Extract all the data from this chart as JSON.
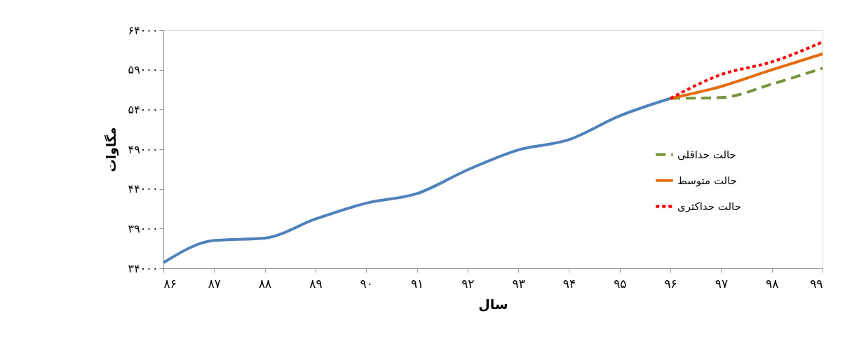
{
  "chart_data": {
    "type": "line",
    "xlabel": "سال",
    "ylabel": "مگاوات",
    "categories": [
      "۸۶",
      "۸۷",
      "۸۸",
      "۸۹",
      "۹۰",
      "۹۱",
      "۹۲",
      "۹۳",
      "۹۴",
      "۹۵",
      "۹۶",
      "۹۷",
      "۹۸",
      "۹۹"
    ],
    "series": [
      {
        "color": "#4f81bd",
        "line_style": "solid",
        "values": [
          34700,
          37500,
          37800,
          40200,
          42200,
          43400,
          46400,
          48900,
          50200,
          53200,
          55400,
          null,
          null,
          null
        ]
      },
      {
        "name": "حالت حداقلی",
        "color": "#77933c",
        "line_style": "dashed",
        "values": [
          null,
          null,
          null,
          null,
          null,
          null,
          null,
          null,
          null,
          null,
          55400,
          55500,
          57200,
          59200
        ]
      },
      {
        "name": "حالت متوسط",
        "color": "#e46c0a",
        "line_style": "solid",
        "values": [
          null,
          null,
          null,
          null,
          null,
          null,
          null,
          null,
          null,
          null,
          55400,
          56900,
          59000,
          61000
        ]
      },
      {
        "name": "حالت حداکثری",
        "color": "#ff0000",
        "line_style": "dotted",
        "values": [
          null,
          null,
          null,
          null,
          null,
          null,
          null,
          null,
          null,
          null,
          55400,
          58400,
          60000,
          62500
        ]
      }
    ],
    "ylim": [
      34000,
      64000
    ],
    "yticks": [
      {
        "value": 34000,
        "label": "۳۴۰۰۰"
      },
      {
        "value": 39000,
        "label": "۳۹۰۰۰"
      },
      {
        "value": 44000,
        "label": "۴۴۰۰۰"
      },
      {
        "value": 49000,
        "label": "۴۹۰۰۰"
      },
      {
        "value": 54000,
        "label": "۵۴۰۰۰"
      },
      {
        "value": 59000,
        "label": "۵۹۰۰۰"
      },
      {
        "value": 64000,
        "label": "۶۴۰۰۰"
      }
    ],
    "grid": false,
    "legend": "right"
  }
}
